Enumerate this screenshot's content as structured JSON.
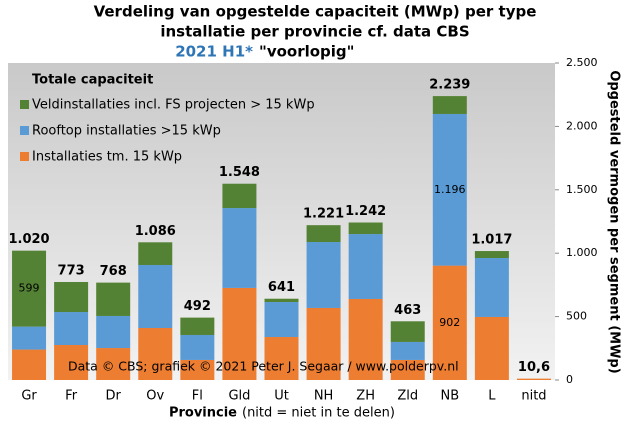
{
  "chart_data": {
    "type": "stacked-bar",
    "title": [
      "Verdeling  van opgestelde capaciteit  (MWp) per type",
      "installatie  per provincie  cf. data CBS"
    ],
    "subtitle": "2021 H1*",
    "subtitle_note": "\"voorlopig\"",
    "legend_title": "Totale capaciteit",
    "x_label": "Provincie",
    "x_label_note": "(nitd = niet in te delen)",
    "y_label": "Opgesteld vermogen per segment (MWp)",
    "annotation": "Data © CBS;  grafiek © 2021  Peter J. Segaar / www.polderpv.nl",
    "categories": [
      "Gr",
      "Fr",
      "Dr",
      "Ov",
      "Fl",
      "Gld",
      "Ut",
      "NH",
      "ZH",
      "Zld",
      "NB",
      "L",
      "nitd"
    ],
    "series": [
      {
        "name": "Installaties tm. 15 kWp",
        "color": "#ed7d31",
        "values": [
          240,
          276,
          252,
          410,
          158,
          726,
          339,
          568,
          639,
          158,
          902,
          497,
          10.6
        ],
        "value_labels": [
          null,
          null,
          null,
          null,
          null,
          null,
          null,
          null,
          null,
          null,
          "902",
          null,
          null
        ]
      },
      {
        "name": "Rooftop installaties >15 kWp",
        "color": "#5b9bd5",
        "values": [
          181,
          260,
          253,
          497,
          197,
          630,
          276,
          520,
          512,
          142,
          1196,
          465,
          0
        ],
        "value_labels": [
          null,
          null,
          null,
          null,
          null,
          null,
          null,
          null,
          null,
          null,
          "1.196",
          null,
          null
        ]
      },
      {
        "name": "Veldinstallaties incl. FS projecten > 15 kWp",
        "color": "#548235",
        "values": [
          599,
          237,
          263,
          179,
          137,
          192,
          26,
          133,
          91,
          163,
          141,
          55,
          0
        ],
        "value_labels": [
          "599",
          null,
          null,
          null,
          null,
          null,
          null,
          null,
          null,
          null,
          null,
          null,
          null
        ]
      }
    ],
    "totals": {
      "values": [
        1020,
        773,
        768,
        1086,
        492,
        1548,
        641,
        1221,
        1242,
        463,
        2239,
        1017,
        10.6
      ],
      "value_labels": [
        "1.020",
        "773",
        "768",
        "1.086",
        "492",
        "1.548",
        "641",
        "1.221",
        "1.242",
        "463",
        "2.239",
        "1.017",
        "10,6"
      ]
    },
    "ylim": [
      0,
      2500
    ],
    "yticks": [
      0,
      500,
      {
        "value": 1000,
        "label": "1.000"
      },
      {
        "value": 1500,
        "label": "1.500"
      },
      {
        "value": 2000,
        "label": "2.000"
      },
      {
        "value": 2500,
        "label": "2.500"
      }
    ]
  }
}
